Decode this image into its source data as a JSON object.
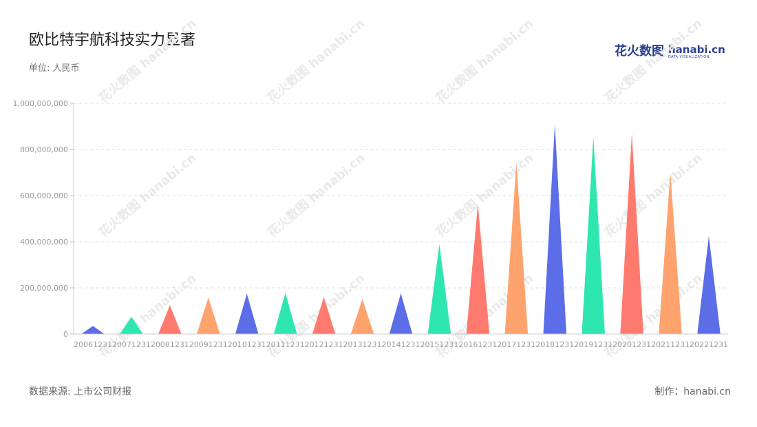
{
  "header": {
    "title": "欧比特宇航科技实力显著",
    "unit": "单位: 人民币"
  },
  "brand": {
    "cn": "花火数图",
    "en": "hanabi.cn",
    "en_sub": "DATA VISUALIZATION",
    "color": "#2a3f8f"
  },
  "footer": {
    "source": "数据来源: 上市公司财报",
    "credit": "制作：hanabi.cn"
  },
  "watermark": "花火数图 hanabi.cn",
  "chart_data": {
    "type": "bar",
    "bar_shape": "triangle",
    "categories": [
      "20061231",
      "20071231",
      "20081231",
      "20091231",
      "20101231",
      "20111231",
      "20121231",
      "20131231",
      "20141231",
      "20151231",
      "20161231",
      "20171231",
      "20181231",
      "20191231",
      "20201231",
      "20211231",
      "20221231"
    ],
    "values": [
      35000000,
      75000000,
      125000000,
      158000000,
      175000000,
      178000000,
      160000000,
      152000000,
      176000000,
      390000000,
      565000000,
      745000000,
      910000000,
      855000000,
      870000000,
      700000000,
      425000000
    ],
    "colors": [
      "#5b6ee8",
      "#2ee6b0",
      "#ff7a6e",
      "#ffa36e"
    ],
    "ylim": [
      0,
      1000000000
    ],
    "yticks": [
      0,
      200000000,
      400000000,
      600000000,
      800000000,
      1000000000
    ],
    "ytick_labels": [
      "0",
      "200,000,000",
      "400,000,000",
      "600,000,000",
      "800,000,000",
      "1,000,000,000"
    ],
    "grid": true,
    "grid_style": "dashed",
    "legend": "none",
    "xlabel": "",
    "ylabel": ""
  }
}
